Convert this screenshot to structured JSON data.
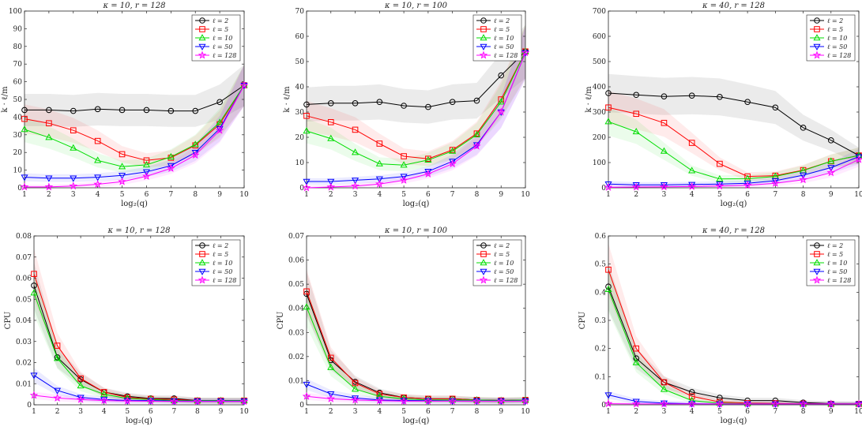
{
  "x_ticks": [
    "1",
    "2",
    "3",
    "4",
    "5",
    "6",
    "7",
    "8",
    "9",
    "10"
  ],
  "legend_labels": [
    "ℓ = 2",
    "ℓ = 5",
    "ℓ = 10",
    "ℓ = 50",
    "ℓ = 128"
  ],
  "colors": [
    "#000000",
    "#ff0000",
    "#00dd00",
    "#0000ff",
    "#ff00ff"
  ],
  "markers": [
    "circle",
    "square",
    "triangle-up",
    "triangle-down",
    "star"
  ],
  "chart_data": [
    {
      "type": "line",
      "title": "κ = 10, r = 128",
      "xlabel": "log₂(q)",
      "ylabel": "k · ℓ/m",
      "xlim": [
        1,
        10
      ],
      "ylim": [
        0,
        100
      ],
      "yticks": [
        "0",
        "10",
        "20",
        "30",
        "40",
        "50",
        "60",
        "70",
        "80",
        "90",
        "100"
      ],
      "x": [
        1,
        2,
        3,
        4,
        5,
        6,
        7,
        8,
        9,
        10
      ],
      "legend": "top-right",
      "grid": false,
      "series": [
        {
          "name": "ℓ = 2",
          "values": [
            44,
            44,
            43.5,
            44.5,
            44,
            44,
            43.5,
            43.5,
            48.5,
            58
          ]
        },
        {
          "name": "ℓ = 5",
          "values": [
            39,
            36.5,
            32.5,
            26.5,
            19,
            15.5,
            17,
            24,
            36,
            58
          ]
        },
        {
          "name": "ℓ = 10",
          "values": [
            33,
            28.5,
            22.5,
            15.5,
            12,
            13,
            17.5,
            24.5,
            37,
            58
          ]
        },
        {
          "name": "ℓ = 50",
          "values": [
            6,
            5.5,
            5.5,
            6,
            7,
            9,
            12.5,
            20,
            33.5,
            58
          ]
        },
        {
          "name": "ℓ = 128",
          "values": [
            0.5,
            0.5,
            1,
            2,
            3.5,
            6.5,
            11,
            18.5,
            32.5,
            58
          ]
        }
      ]
    },
    {
      "type": "line",
      "title": "κ = 10, r = 100",
      "xlabel": "log₂(q)",
      "ylabel": "k · ℓ/m",
      "xlim": [
        1,
        10
      ],
      "ylim": [
        0,
        70
      ],
      "yticks": [
        "0",
        "10",
        "20",
        "30",
        "40",
        "50",
        "60",
        "70"
      ],
      "x": [
        1,
        2,
        3,
        4,
        5,
        6,
        7,
        8,
        9,
        10
      ],
      "legend": "top-right",
      "grid": false,
      "series": [
        {
          "name": "ℓ = 2",
          "values": [
            33,
            33.5,
            33.5,
            34,
            32.5,
            32,
            34,
            34.5,
            44.5,
            54
          ]
        },
        {
          "name": "ℓ = 5",
          "values": [
            28.5,
            26,
            23,
            17.5,
            12.5,
            11.5,
            15,
            21.5,
            35,
            54
          ]
        },
        {
          "name": "ℓ = 10",
          "values": [
            22.5,
            19.5,
            14,
            9.5,
            9,
            11,
            14.5,
            21,
            34,
            54
          ]
        },
        {
          "name": "ℓ = 50",
          "values": [
            2.5,
            2.5,
            3,
            3.5,
            4.5,
            6.5,
            10.5,
            17,
            30,
            53.5
          ]
        },
        {
          "name": "ℓ = 128",
          "values": [
            0,
            0.3,
            0.7,
            1.5,
            3,
            5.5,
            9.5,
            16.5,
            30,
            53.5
          ]
        }
      ]
    },
    {
      "type": "line",
      "title": "κ = 40, r = 128",
      "xlabel": "log₂(q)",
      "ylabel": "k · ℓ/m",
      "xlim": [
        1,
        10
      ],
      "ylim": [
        0,
        700
      ],
      "yticks": [
        "0",
        "100",
        "200",
        "300",
        "400",
        "500",
        "600",
        "700"
      ],
      "x": [
        1,
        2,
        3,
        4,
        5,
        6,
        7,
        8,
        9,
        10
      ],
      "legend": "top-right",
      "grid": false,
      "series": [
        {
          "name": "ℓ = 2",
          "values": [
            375,
            368,
            362,
            365,
            360,
            340,
            318,
            238,
            188,
            128
          ]
        },
        {
          "name": "ℓ = 5",
          "values": [
            318,
            293,
            257,
            178,
            95,
            45,
            48,
            70,
            105,
            128
          ]
        },
        {
          "name": "ℓ = 10",
          "values": [
            262,
            222,
            145,
            68,
            35,
            36,
            45,
            68,
            105,
            128
          ]
        },
        {
          "name": "ℓ = 50",
          "values": [
            15,
            12,
            12,
            13,
            15,
            18,
            28,
            50,
            80,
            123
          ]
        },
        {
          "name": "ℓ = 128",
          "values": [
            2,
            3,
            4,
            5,
            7,
            10,
            18,
            32,
            60,
            112
          ]
        }
      ]
    },
    {
      "type": "line",
      "title": "κ = 10, r = 128",
      "xlabel": "log₂(q)",
      "ylabel": "CPU",
      "xlim": [
        1,
        10
      ],
      "ylim": [
        0,
        0.08
      ],
      "yticks": [
        "0",
        "0.01",
        "0.02",
        "0.03",
        "0.04",
        "0.05",
        "0.06",
        "0.07",
        "0.08"
      ],
      "x": [
        1,
        2,
        3,
        4,
        5,
        6,
        7,
        8,
        9,
        10
      ],
      "legend": "top-right",
      "grid": false,
      "series": [
        {
          "name": "ℓ = 2",
          "values": [
            0.0565,
            0.0225,
            0.012,
            0.006,
            0.004,
            0.003,
            0.003,
            0.002,
            0.002,
            0.002
          ]
        },
        {
          "name": "ℓ = 5",
          "values": [
            0.062,
            0.028,
            0.0125,
            0.006,
            0.0035,
            0.0028,
            0.0025,
            0.002,
            0.002,
            0.002
          ]
        },
        {
          "name": "ℓ = 10",
          "values": [
            0.053,
            0.022,
            0.009,
            0.005,
            0.003,
            0.0025,
            0.002,
            0.002,
            0.002,
            0.002
          ]
        },
        {
          "name": "ℓ = 50",
          "values": [
            0.014,
            0.0068,
            0.0035,
            0.0025,
            0.002,
            0.002,
            0.0018,
            0.0018,
            0.0018,
            0.0018
          ]
        },
        {
          "name": "ℓ = 128",
          "values": [
            0.0045,
            0.0032,
            0.0025,
            0.002,
            0.0018,
            0.0017,
            0.0016,
            0.0016,
            0.0016,
            0.0016
          ]
        }
      ]
    },
    {
      "type": "line",
      "title": "κ = 10, r = 100",
      "xlabel": "log₂(q)",
      "ylabel": "CPU",
      "xlim": [
        1,
        10
      ],
      "ylim": [
        0,
        0.07
      ],
      "yticks": [
        "0",
        "0.01",
        "0.02",
        "0.03",
        "0.04",
        "0.05",
        "0.06",
        "0.07"
      ],
      "x": [
        1,
        2,
        3,
        4,
        5,
        6,
        7,
        8,
        9,
        10
      ],
      "legend": "top-right",
      "grid": false,
      "series": [
        {
          "name": "ℓ = 2",
          "values": [
            0.046,
            0.0185,
            0.0095,
            0.005,
            0.003,
            0.0025,
            0.0025,
            0.002,
            0.0018,
            0.002
          ]
        },
        {
          "name": "ℓ = 5",
          "values": [
            0.047,
            0.0195,
            0.009,
            0.0045,
            0.003,
            0.0025,
            0.0025,
            0.002,
            0.0018,
            0.002
          ]
        },
        {
          "name": "ℓ = 10",
          "values": [
            0.0405,
            0.0155,
            0.0065,
            0.0035,
            0.0025,
            0.002,
            0.002,
            0.002,
            0.0018,
            0.002
          ]
        },
        {
          "name": "ℓ = 50",
          "values": [
            0.0085,
            0.0045,
            0.0028,
            0.002,
            0.0018,
            0.0017,
            0.0016,
            0.0016,
            0.0016,
            0.0016
          ]
        },
        {
          "name": "ℓ = 128",
          "values": [
            0.0035,
            0.0025,
            0.002,
            0.0017,
            0.0015,
            0.0015,
            0.0015,
            0.0015,
            0.0015,
            0.0015
          ]
        }
      ]
    },
    {
      "type": "line",
      "title": "κ = 40, r = 128",
      "xlabel": "log₂(q)",
      "ylabel": "CPU",
      "xlim": [
        1,
        10
      ],
      "ylim": [
        0,
        0.6
      ],
      "yticks": [
        "0",
        "0.1",
        "0.2",
        "0.3",
        "0.4",
        "0.5",
        "0.6"
      ],
      "x": [
        1,
        2,
        3,
        4,
        5,
        6,
        7,
        8,
        9,
        10
      ],
      "legend": "top-right",
      "grid": false,
      "series": [
        {
          "name": "ℓ = 2",
          "values": [
            0.42,
            0.165,
            0.08,
            0.045,
            0.025,
            0.015,
            0.015,
            0.008,
            0.004,
            0.003
          ]
        },
        {
          "name": "ℓ = 5",
          "values": [
            0.48,
            0.2,
            0.08,
            0.03,
            0.01,
            0.006,
            0.005,
            0.004,
            0.003,
            0.003
          ]
        },
        {
          "name": "ℓ = 10",
          "values": [
            0.41,
            0.15,
            0.055,
            0.015,
            0.006,
            0.004,
            0.003,
            0.003,
            0.003,
            0.003
          ]
        },
        {
          "name": "ℓ = 50",
          "values": [
            0.035,
            0.012,
            0.006,
            0.004,
            0.003,
            0.003,
            0.003,
            0.003,
            0.003,
            0.003
          ]
        },
        {
          "name": "ℓ = 128",
          "values": [
            0.004,
            0.003,
            0.003,
            0.003,
            0.003,
            0.003,
            0.003,
            0.003,
            0.003,
            0.003
          ]
        }
      ]
    }
  ]
}
